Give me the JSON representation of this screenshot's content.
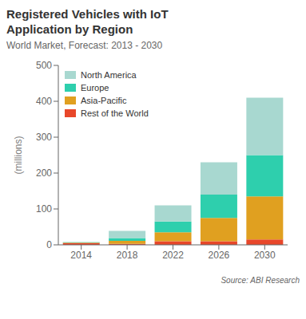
{
  "chart_data": {
    "type": "bar",
    "stacked": true,
    "title": "Registered Vehicles with IoT\nApplication by Region",
    "subtitle": "World Market, Forecast: 2013 - 2030",
    "annotations": [
      "Source: ABI Research"
    ],
    "ylabel": "(millions)",
    "categories": [
      "2014",
      "2018",
      "2022",
      "2026",
      "2030"
    ],
    "series": [
      {
        "name": "North America",
        "color": "#a8d8d0",
        "values": [
          1,
          20,
          45,
          90,
          160
        ]
      },
      {
        "name": "Europe",
        "color": "#2ecfad",
        "values": [
          1,
          8,
          30,
          65,
          115
        ]
      },
      {
        "name": "Asia-Pacific",
        "color": "#e0a020",
        "values": [
          1,
          8,
          25,
          65,
          120
        ]
      },
      {
        "name": "Rest of the World",
        "color": "#e8472a",
        "values": [
          5,
          3,
          10,
          10,
          15
        ]
      }
    ],
    "ylim": [
      0,
      500
    ],
    "yticks": [
      0,
      100,
      200,
      300,
      400,
      500
    ],
    "grid": false,
    "legend": "upper left"
  }
}
